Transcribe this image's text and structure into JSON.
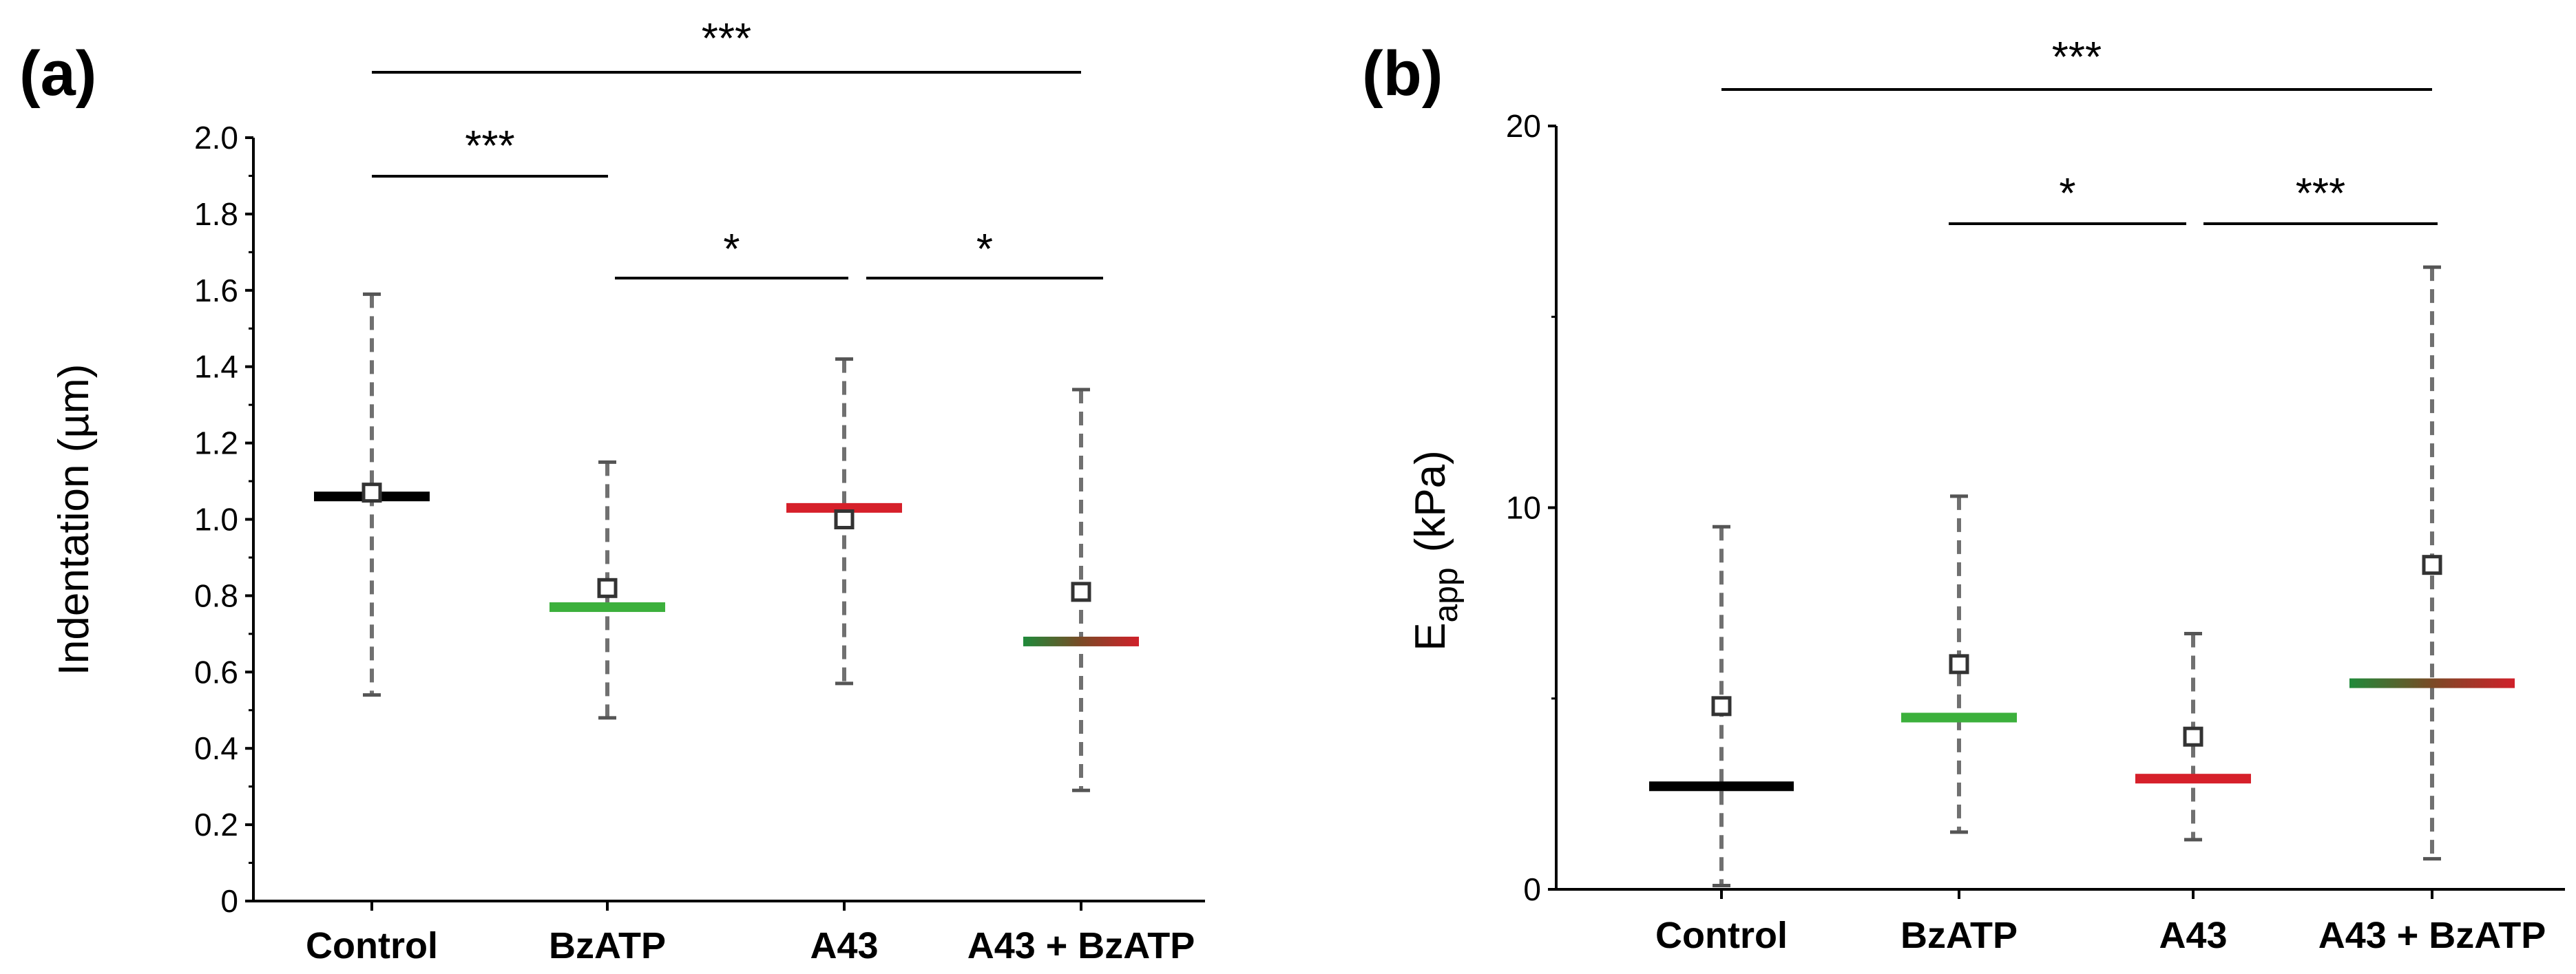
{
  "chart_data": [
    {
      "type": "box",
      "panel_label": "(a)",
      "ylabel": "Indentation (µm)",
      "ylabel_parts": [
        "Indentation (",
        "µ",
        "m)"
      ],
      "ylim": [
        0,
        2.0
      ],
      "yticks": [
        0,
        0.2,
        0.4,
        0.6,
        0.8,
        1.0,
        1.2,
        1.4,
        1.6,
        1.8,
        2.0
      ],
      "ytick_labels": [
        "0",
        "0.2",
        "0.4",
        "0.6",
        "0.8",
        "1.0",
        "1.2",
        "1.4",
        "1.6",
        "1.8",
        "2.0"
      ],
      "categories": [
        "Control",
        "BzATP",
        "A43",
        "A43 + BzATP"
      ],
      "series": [
        {
          "name": "Control",
          "median": 1.06,
          "mean": 1.07,
          "whisker_low": 0.54,
          "whisker_high": 1.59,
          "color": "#000000"
        },
        {
          "name": "BzATP",
          "median": 0.77,
          "mean": 0.82,
          "whisker_low": 0.48,
          "whisker_high": 1.15,
          "color": "#3cb03c"
        },
        {
          "name": "A43",
          "median": 1.03,
          "mean": 1.0,
          "whisker_low": 0.57,
          "whisker_high": 1.42,
          "color": "#d6202a"
        },
        {
          "name": "A43 + BzATP",
          "median": 0.68,
          "mean": 0.81,
          "whisker_low": 0.29,
          "whisker_high": 1.34,
          "color": "gradient"
        }
      ],
      "significance": [
        {
          "from": 0,
          "to": 3,
          "label": "***"
        },
        {
          "from": 0,
          "to": 1,
          "label": "***"
        },
        {
          "from": 1,
          "to": 2,
          "label": "*"
        },
        {
          "from": 2,
          "to": 3,
          "label": "*"
        }
      ]
    },
    {
      "type": "box",
      "panel_label": "(b)",
      "ylabel": "Eapp (kPa)",
      "ylabel_main": "E",
      "ylabel_sub": "app",
      "ylabel_unit": "(kPa)",
      "ylim": [
        0,
        20
      ],
      "yticks": [
        0,
        10,
        20
      ],
      "ytick_labels": [
        "0",
        "10",
        "20"
      ],
      "categories": [
        "Control",
        "BzATP",
        "A43",
        "A43 + BzATP"
      ],
      "series": [
        {
          "name": "Control",
          "median": 2.7,
          "mean": 4.8,
          "whisker_low": 0.1,
          "whisker_high": 9.5,
          "color": "#000000"
        },
        {
          "name": "BzATP",
          "median": 4.5,
          "mean": 5.9,
          "whisker_low": 1.5,
          "whisker_high": 10.3,
          "color": "#3cb03c"
        },
        {
          "name": "A43",
          "median": 2.9,
          "mean": 4.0,
          "whisker_low": 1.3,
          "whisker_high": 6.7,
          "color": "#d6202a"
        },
        {
          "name": "A43 + BzATP",
          "median": 5.4,
          "mean": 8.5,
          "whisker_low": 0.8,
          "whisker_high": 16.3,
          "color": "gradient"
        }
      ],
      "significance": [
        {
          "from": 0,
          "to": 3,
          "label": "***"
        },
        {
          "from": 1,
          "to": 2,
          "label": "*"
        },
        {
          "from": 2,
          "to": 3,
          "label": "***"
        }
      ]
    }
  ]
}
